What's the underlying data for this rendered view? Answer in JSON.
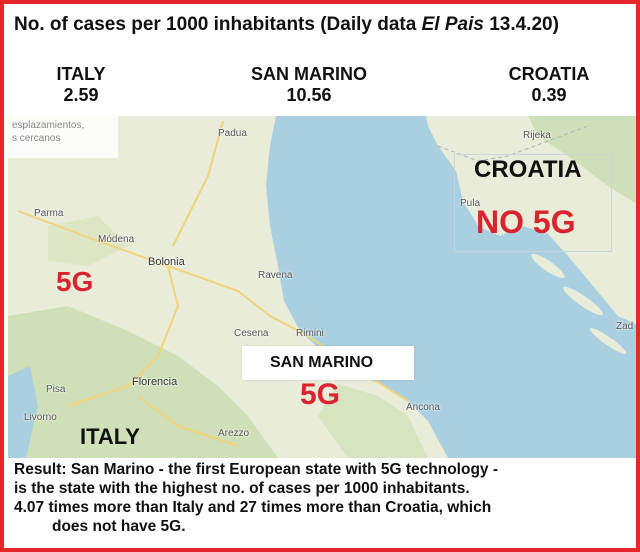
{
  "header": {
    "title_prefix": "No. of cases per 1000 inhabitants (Daily data ",
    "title_source": "El Pais",
    "title_suffix": " 13.4.20)"
  },
  "stats": [
    {
      "name": "ITALY",
      "value": "2.59"
    },
    {
      "name": "SAN MARINO",
      "value": "10.56"
    },
    {
      "name": "CROATIA",
      "value": "0.39"
    }
  ],
  "map": {
    "corner_note_line1": "esplazamientos,",
    "corner_note_line2": "s cercanos",
    "labels": {
      "italy_5g": "5G",
      "italy_name": "ITALY",
      "san_marino_name": "SAN MARINO",
      "san_marino_5g": "5G",
      "croatia_name": "CROATIA",
      "croatia_no5g": "NO 5G"
    },
    "cities": {
      "padua": "Padua",
      "parma": "Parma",
      "modena": "Módena",
      "bolonia": "Bolonia",
      "ravena": "Ravena",
      "cesena": "Cesena",
      "rimini": "Rimini",
      "florencia": "Florencia",
      "pisa": "Pisa",
      "livorno": "Livorno",
      "arezzo": "Arezzo",
      "ancona": "Ancona",
      "pula": "Pula",
      "rijeka": "Rijeka",
      "zadar": "Zad"
    },
    "colors": {
      "sea": "#a9cfe0",
      "land": "#e8ecd8",
      "land_green": "#cfe0b8",
      "accent_red": "#d9232e"
    }
  },
  "result": {
    "line1": "Result: San Marino - the first European state with 5G technology -",
    "line2": "is the state with the highest no. of cases per 1000 inhabitants.",
    "line3": "4.07 times more than Italy and 27 times more than Croatia, which",
    "line4": "does not have 5G."
  },
  "frame_color": "#e8262c"
}
